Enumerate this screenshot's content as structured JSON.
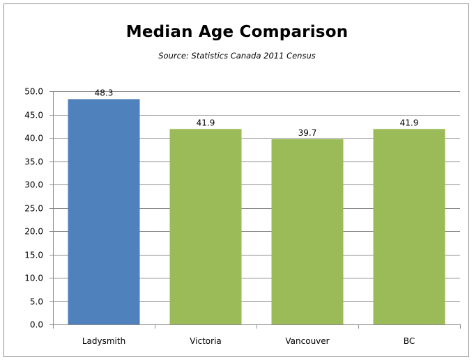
{
  "chart_data": {
    "type": "bar",
    "title": "Median Age Comparison",
    "subtitle": "Source:  Statistics  Canada 2011 Census",
    "categories": [
      "Ladysmith",
      "Victoria",
      "Vancouver",
      "BC"
    ],
    "values": [
      48.3,
      41.9,
      39.7,
      41.9
    ],
    "data_labels": [
      "48.3",
      "41.9",
      "39.7",
      "41.9"
    ],
    "bar_colors": [
      "#4f81bd",
      "#9bbb59",
      "#9bbb59",
      "#9bbb59"
    ],
    "ylim": [
      0,
      50
    ],
    "yticks": [
      0,
      5,
      10,
      15,
      20,
      25,
      30,
      35,
      40,
      45,
      50
    ],
    "ytick_labels": [
      "0.0",
      "5.0",
      "10.0",
      "15.0",
      "20.0",
      "25.0",
      "30.0",
      "35.0",
      "40.0",
      "45.0",
      "50.0"
    ],
    "xlabel": "",
    "ylabel": "",
    "grid": true,
    "legend": "none",
    "gridline_color": "#8c8c8c",
    "axis_color": "#8c8c8c"
  }
}
